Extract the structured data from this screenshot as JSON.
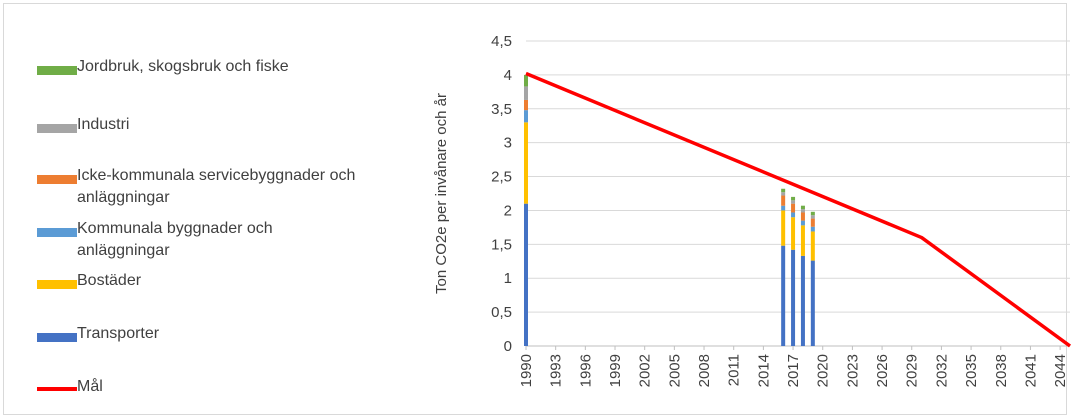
{
  "chart_data": {
    "type": "bar",
    "ylabel": "Ton CO2e per invånare och år",
    "xlabel": "",
    "ylim": [
      0,
      4.5
    ],
    "y_ticks": [
      "0",
      "0,5",
      "1",
      "1,5",
      "2",
      "2,5",
      "3",
      "3,5",
      "4",
      "4,5"
    ],
    "x_range": [
      1990,
      2045
    ],
    "x_ticks": [
      "1990",
      "1993",
      "1996",
      "1999",
      "2002",
      "2005",
      "2008",
      "2011",
      "2014",
      "2017",
      "2020",
      "2023",
      "2026",
      "2029",
      "2032",
      "2035",
      "2038",
      "2041",
      "2044"
    ],
    "grid": true,
    "legend_position": "left",
    "years": [
      1990,
      2016,
      2017,
      2018,
      2019
    ],
    "series": [
      {
        "name": "Transporter",
        "color": "#4472c4",
        "values": [
          2.1,
          1.48,
          1.42,
          1.33,
          1.26
        ]
      },
      {
        "name": "Bostäder",
        "color": "#ffc000",
        "values": [
          1.2,
          0.52,
          0.48,
          0.45,
          0.43
        ]
      },
      {
        "name": "Kommunala byggnader och anläggningar",
        "color": "#5b9bd5",
        "values": [
          0.18,
          0.07,
          0.07,
          0.07,
          0.07
        ]
      },
      {
        "name": "Icke-kommunala servicebyggnader och anläggningar",
        "color": "#ed7d31",
        "values": [
          0.15,
          0.15,
          0.13,
          0.12,
          0.12
        ]
      },
      {
        "name": "Industri",
        "color": "#a5a5a5",
        "values": [
          0.2,
          0.05,
          0.05,
          0.05,
          0.05
        ]
      },
      {
        "name": "Jordbruk, skogsbruk och fiske",
        "color": "#70ad47",
        "values": [
          0.17,
          0.05,
          0.05,
          0.05,
          0.05
        ]
      }
    ],
    "target_line": {
      "name": "Mål",
      "color": "#ff0000",
      "x": [
        1990,
        2030,
        2045
      ],
      "y": [
        4.02,
        1.6,
        0
      ]
    }
  },
  "legend": [
    {
      "label": "Jordbruk, skogsbruk och fiske",
      "color": "#70ad47",
      "kind": "bar"
    },
    {
      "label": "Industri",
      "color": "#a5a5a5",
      "kind": "bar"
    },
    {
      "label": "Icke-kommunala servicebyggnader och anläggningar",
      "color": "#ed7d31",
      "kind": "bar"
    },
    {
      "label": "Kommunala byggnader och anläggningar",
      "color": "#5b9bd5",
      "kind": "bar"
    },
    {
      "label": "Bostäder",
      "color": "#ffc000",
      "kind": "bar"
    },
    {
      "label": "Transporter",
      "color": "#4472c4",
      "kind": "bar"
    },
    {
      "label": "Mål",
      "color": "#ff0000",
      "kind": "line"
    }
  ]
}
